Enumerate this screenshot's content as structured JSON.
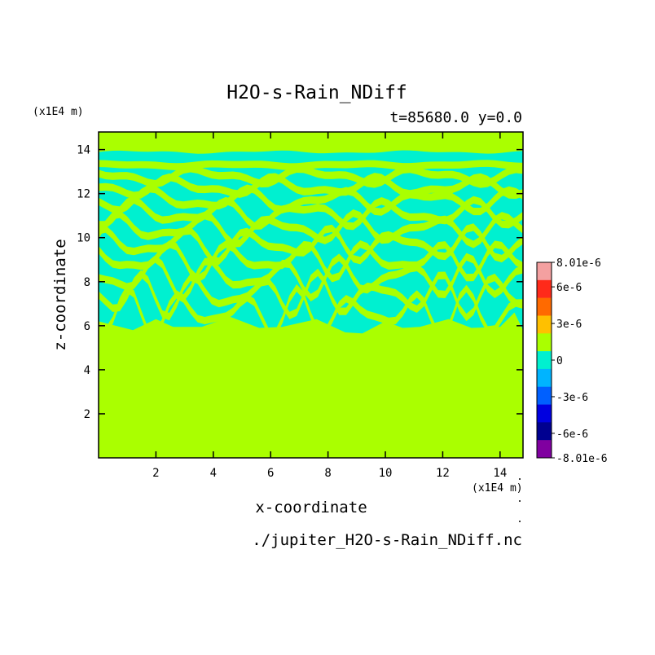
{
  "chart_data": {
    "type": "heatmap",
    "title": "H2O-s-Rain_NDiff",
    "time_label": "t=85680.0 y=0.0",
    "xlabel": "x-coordinate",
    "ylabel": "z-coordinate",
    "x_unit": "(x1E4 m)",
    "y_unit": "(x1E4 m)",
    "filename": "./jupiter_H2O-s-Rain_NDiff.nc",
    "xlim": [
      0,
      14.8
    ],
    "ylim": [
      0,
      14.8
    ],
    "x_ticks": [
      2,
      4,
      6,
      8,
      10,
      12,
      14
    ],
    "y_ticks": [
      2,
      4,
      6,
      8,
      10,
      12,
      14
    ],
    "colorbar": {
      "range": [
        -8.01e-06,
        8.01e-06
      ],
      "tick_labels": [
        "8.01e-6",
        "6e-6",
        "3e-6",
        "0",
        "-3e-6",
        "-6e-6",
        "-8.01e-6"
      ],
      "tick_values": [
        8.01e-06,
        6e-06,
        3e-06,
        0,
        -3e-06,
        -6e-06,
        -8.01e-06
      ],
      "levels": [
        {
          "color": "#f4a0a0"
        },
        {
          "color": "#ff2a1a"
        },
        {
          "color": "#ff6a00"
        },
        {
          "color": "#ffc000"
        },
        {
          "color": "#aaff00"
        },
        {
          "color": "#00f0d0"
        },
        {
          "color": "#00b4ff"
        },
        {
          "color": "#0060ff"
        },
        {
          "color": "#0000e0"
        },
        {
          "color": "#000090"
        },
        {
          "color": "#8000a0"
        }
      ]
    },
    "field": {
      "background_value": 0,
      "background_color": "#aaff00",
      "band_color": "#00f0d0",
      "cyan_region_z": [
        5.6,
        14.1
      ],
      "stripe_z": [
        14.05,
        13.3,
        12.8,
        12.3,
        11.7,
        11.1,
        10.4,
        9.7,
        9.0,
        8.2,
        7.4,
        6.6
      ],
      "boundary_z": [
        [
          0,
          6.2
        ],
        [
          0.6,
          6.0
        ],
        [
          1.2,
          5.8
        ],
        [
          2.0,
          6.3
        ],
        [
          2.6,
          5.95
        ],
        [
          3.6,
          5.95
        ],
        [
          4.6,
          6.4
        ],
        [
          5.6,
          5.9
        ],
        [
          6.4,
          5.95
        ],
        [
          7.6,
          6.3
        ],
        [
          8.6,
          5.7
        ],
        [
          9.2,
          5.65
        ],
        [
          10.0,
          6.2
        ],
        [
          10.6,
          5.9
        ],
        [
          11.2,
          5.95
        ],
        [
          12.2,
          6.3
        ],
        [
          13.0,
          5.9
        ],
        [
          14.0,
          5.95
        ],
        [
          14.5,
          6.6
        ],
        [
          14.8,
          5.8
        ]
      ]
    }
  }
}
